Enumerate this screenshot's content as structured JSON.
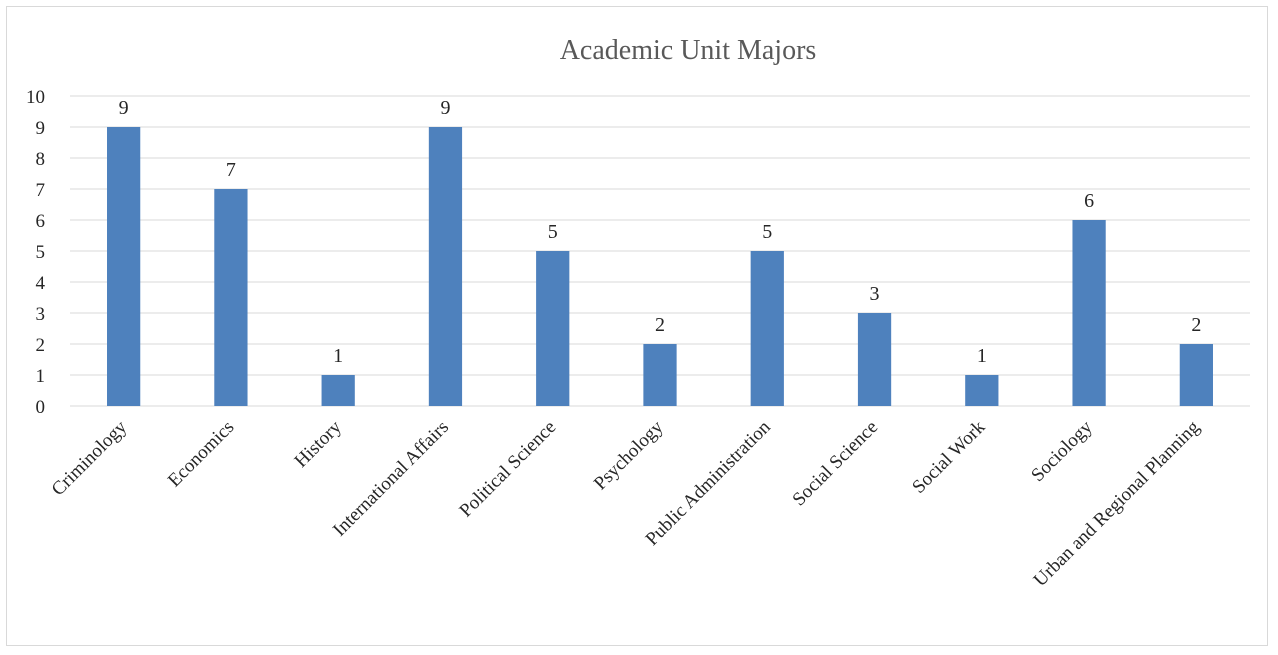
{
  "chart_data": {
    "type": "bar",
    "title": "Academic Unit Majors",
    "xlabel": "",
    "ylabel": "",
    "categories": [
      "Criminology",
      "Economics",
      "History",
      "International Affairs",
      "Political Science",
      "Psychology",
      "Public Administration",
      "Social Science",
      "Social Work",
      "Sociology",
      "Urban and Regional Planning"
    ],
    "values": [
      9,
      7,
      1,
      9,
      5,
      2,
      5,
      3,
      1,
      6,
      2
    ],
    "ylim": [
      0,
      10
    ],
    "yticks": [
      0,
      1,
      2,
      3,
      4,
      5,
      6,
      7,
      8,
      9,
      10
    ],
    "grid": true,
    "legend": "none",
    "data_labels": true,
    "colors": {
      "bar": "#4e81bd",
      "grid": "#d9d9d9",
      "title": "#595959",
      "text": "#262626"
    }
  }
}
